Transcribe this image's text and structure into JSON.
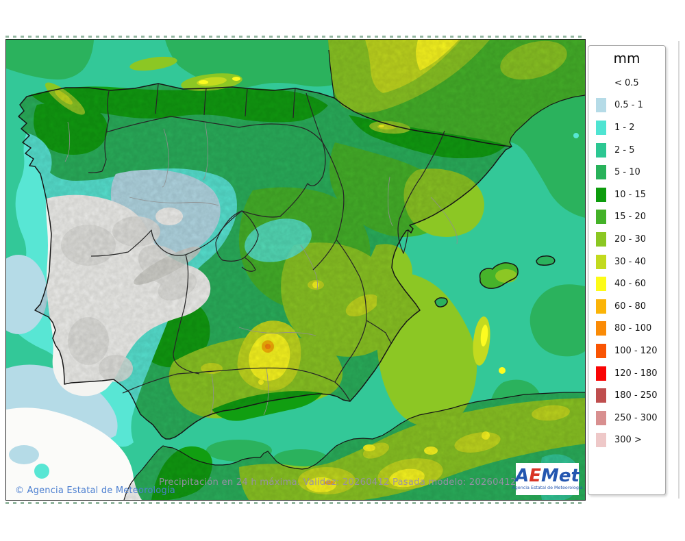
{
  "map": {
    "attribution": "© Agencia Estatal de Meteorología",
    "caption": "Precipitación en 24 h máxima. Validez: 20260412 Pasada modelo: 2026041200",
    "region": "Iberian Peninsula and Balearic Islands",
    "border_color": "#1c1c1c"
  },
  "legend": {
    "title": "mm",
    "entries": [
      {
        "label": "< 0.5",
        "color": null
      },
      {
        "label": "0.5 - 1",
        "color": "#b5dbe7"
      },
      {
        "label": "1 - 2",
        "color": "#4fe4d2"
      },
      {
        "label": "2 - 5",
        "color": "#2cc792"
      },
      {
        "label": "5 - 10",
        "color": "#28b25a"
      },
      {
        "label": "10 - 15",
        "color": "#0d9c0d"
      },
      {
        "label": "15 - 20",
        "color": "#44b228"
      },
      {
        "label": "20 - 30",
        "color": "#8bc722"
      },
      {
        "label": "30 - 40",
        "color": "#c2da1e"
      },
      {
        "label": "40 - 60",
        "color": "#fdfb18"
      },
      {
        "label": "60 - 80",
        "color": "#fbb407"
      },
      {
        "label": "80 - 100",
        "color": "#fa8b06"
      },
      {
        "label": "100 - 120",
        "color": "#f95403"
      },
      {
        "label": "120 - 180",
        "color": "#f90404"
      },
      {
        "label": "180 - 250",
        "color": "#bf4e4e"
      },
      {
        "label": "250 - 300",
        "color": "#d88f8f"
      },
      {
        "label": "300 >",
        "color": "#eec8c8"
      }
    ]
  },
  "palette": {
    "c05_1": "#b5dbe7",
    "c1_2": "#58e6d4",
    "c2_5": "#33c898",
    "c5_10": "#2bb25d",
    "c10_15": "#119e11",
    "c15_20": "#46b32a",
    "c20_30": "#8cc724",
    "c30_40": "#c3da1f",
    "c40_60": "#fdfb20",
    "c60_80": "#fbb407",
    "c80_100": "#f9820d",
    "white_sea": "#fbfbf9",
    "white_land": "#f4f4f1",
    "hill_gray": "#e2e2de",
    "hill_gray2": "#cfcfc9"
  },
  "logo": {
    "subtitle": "Agencia Estatal de Meteorología",
    "letters": [
      {
        "ch": "A",
        "color": "#2456b0"
      },
      {
        "ch": "E",
        "color": "#d93425"
      },
      {
        "ch": "M",
        "color": "#2456b0"
      },
      {
        "ch": "e",
        "color": "#2456b0"
      },
      {
        "ch": "t",
        "color": "#2456b0"
      }
    ]
  }
}
